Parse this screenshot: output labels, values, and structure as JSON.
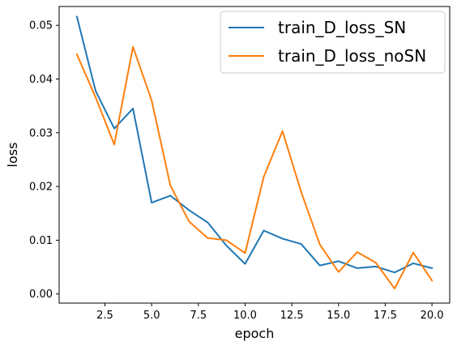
{
  "chart_data": {
    "type": "line",
    "title": "",
    "xlabel": "epoch",
    "ylabel": "loss",
    "xlim": [
      0.05,
      20.95
    ],
    "ylim": [
      -0.0017,
      0.0535
    ],
    "grid": false,
    "legend_position": "top-right",
    "x_ticks": [
      2.5,
      5.0,
      7.5,
      10.0,
      12.5,
      15.0,
      17.5,
      20.0
    ],
    "x_tick_labels": [
      "2.5",
      "5.0",
      "7.5",
      "10.0",
      "12.5",
      "15.0",
      "17.5",
      "20.0"
    ],
    "y_ticks": [
      0.0,
      0.01,
      0.02,
      0.03,
      0.04,
      0.05
    ],
    "y_tick_labels": [
      "0.00",
      "0.01",
      "0.02",
      "0.03",
      "0.04",
      "0.05"
    ],
    "x": [
      1,
      2,
      3,
      4,
      5,
      6,
      7,
      8,
      9,
      10,
      11,
      12,
      13,
      14,
      15,
      16,
      17,
      18,
      19,
      20
    ],
    "series": [
      {
        "name": "train_D_loss_SN",
        "color": "#1f77b4",
        "values": [
          0.0516,
          0.0378,
          0.0308,
          0.0345,
          0.017,
          0.0183,
          0.0156,
          0.0133,
          0.009,
          0.0056,
          0.0118,
          0.0103,
          0.0093,
          0.0053,
          0.0061,
          0.0048,
          0.0051,
          0.004,
          0.0057,
          0.0048
        ]
      },
      {
        "name": "train_D_loss_noSN",
        "color": "#ff7f0e",
        "values": [
          0.0446,
          0.0366,
          0.0278,
          0.046,
          0.036,
          0.0202,
          0.0135,
          0.0104,
          0.01,
          0.0076,
          0.0218,
          0.0303,
          0.019,
          0.0092,
          0.0041,
          0.0078,
          0.0058,
          0.001,
          0.0077,
          0.0025
        ]
      }
    ]
  }
}
